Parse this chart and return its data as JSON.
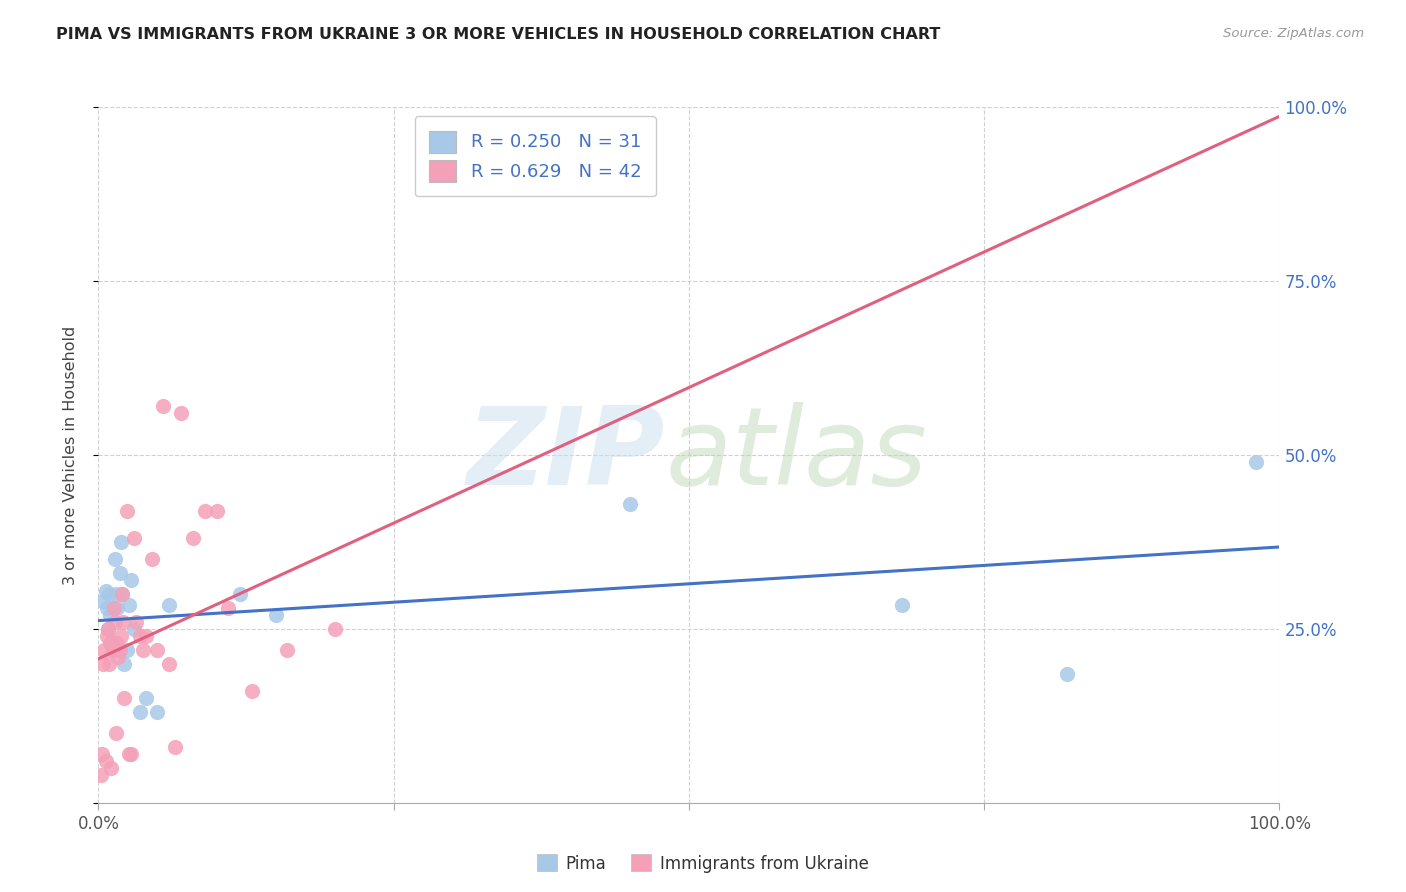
{
  "title": "PIMA VS IMMIGRANTS FROM UKRAINE 3 OR MORE VEHICLES IN HOUSEHOLD CORRELATION CHART",
  "source": "Source: ZipAtlas.com",
  "ylabel": "3 or more Vehicles in Household",
  "pima_R": 0.25,
  "pima_N": 31,
  "ukraine_R": 0.629,
  "ukraine_N": 42,
  "pima_color": "#a8c8e8",
  "ukraine_color": "#f4a0b8",
  "pima_line_color": "#4472c4",
  "ukraine_line_color": "#e06080",
  "legend_label_pima": "Pima",
  "legend_label_ukraine": "Immigrants from Ukraine",
  "axis_label_color": "#4472c4",
  "title_color": "#222222",
  "source_color": "#999999",
  "grid_color": "#cccccc",
  "xlim": [
    0,
    1.0
  ],
  "ylim": [
    0,
    1.0
  ],
  "xticks": [
    0,
    0.25,
    0.5,
    0.75,
    1.0
  ],
  "xticklabels": [
    "0.0%",
    "",
    "",
    "",
    "100.0%"
  ],
  "yticks": [
    0,
    0.25,
    0.5,
    0.75,
    1.0
  ],
  "yticklabels_right": [
    "",
    "25.0%",
    "50.0%",
    "75.0%",
    "100.0%"
  ],
  "pima_x": [
    0.004,
    0.006,
    0.007,
    0.008,
    0.009,
    0.01,
    0.011,
    0.012,
    0.013,
    0.014,
    0.015,
    0.016,
    0.017,
    0.018,
    0.019,
    0.02,
    0.022,
    0.024,
    0.026,
    0.028,
    0.03,
    0.035,
    0.04,
    0.05,
    0.06,
    0.12,
    0.15,
    0.45,
    0.68,
    0.82,
    0.98
  ],
  "pima_y": [
    0.29,
    0.305,
    0.28,
    0.25,
    0.3,
    0.27,
    0.23,
    0.28,
    0.22,
    0.35,
    0.3,
    0.28,
    0.22,
    0.33,
    0.375,
    0.3,
    0.2,
    0.22,
    0.285,
    0.32,
    0.25,
    0.13,
    0.15,
    0.13,
    0.285,
    0.3,
    0.27,
    0.43,
    0.285,
    0.185,
    0.49
  ],
  "ukraine_x": [
    0.002,
    0.003,
    0.004,
    0.005,
    0.006,
    0.007,
    0.008,
    0.009,
    0.01,
    0.011,
    0.012,
    0.013,
    0.014,
    0.015,
    0.016,
    0.017,
    0.018,
    0.019,
    0.02,
    0.021,
    0.022,
    0.024,
    0.026,
    0.028,
    0.03,
    0.032,
    0.035,
    0.038,
    0.04,
    0.045,
    0.05,
    0.055,
    0.06,
    0.065,
    0.07,
    0.08,
    0.09,
    0.1,
    0.11,
    0.13,
    0.16,
    0.2
  ],
  "ukraine_y": [
    0.04,
    0.07,
    0.2,
    0.22,
    0.06,
    0.24,
    0.25,
    0.2,
    0.23,
    0.05,
    0.22,
    0.28,
    0.26,
    0.1,
    0.23,
    0.21,
    0.22,
    0.24,
    0.3,
    0.26,
    0.15,
    0.42,
    0.07,
    0.07,
    0.38,
    0.26,
    0.24,
    0.22,
    0.24,
    0.35,
    0.22,
    0.57,
    0.2,
    0.08,
    0.56,
    0.38,
    0.42,
    0.42,
    0.28,
    0.16,
    0.22,
    0.25
  ]
}
